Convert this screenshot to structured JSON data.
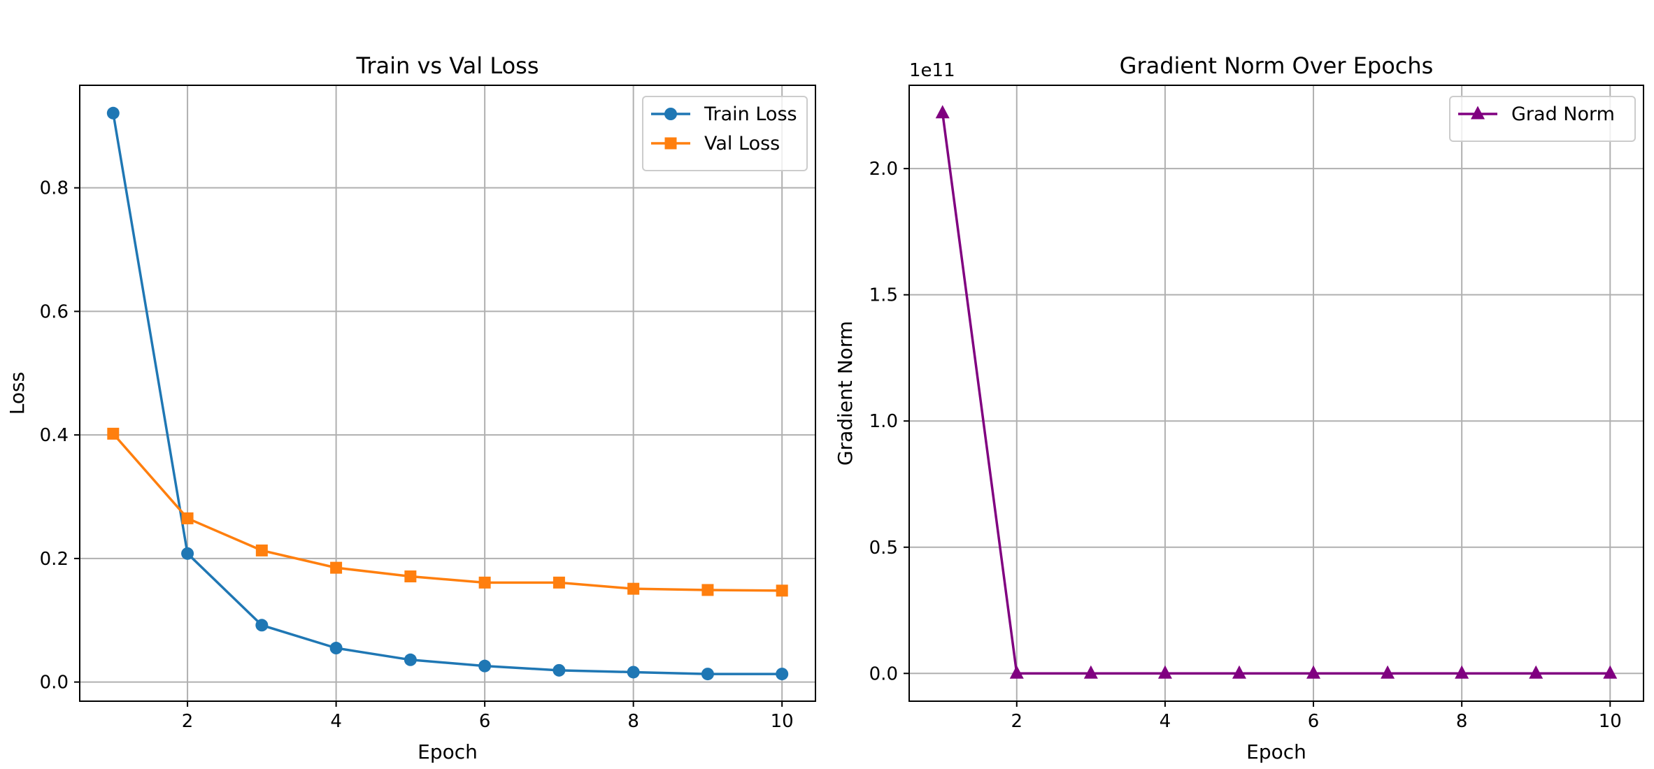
{
  "chart_data": [
    {
      "type": "line",
      "title": "Train vs Val Loss",
      "xlabel": "Epoch",
      "ylabel": "Loss",
      "xlim": [
        0.55,
        10.45
      ],
      "ylim": [
        -0.031,
        0.966
      ],
      "xticks": [
        2,
        4,
        6,
        8,
        10
      ],
      "xtick_labels": [
        "2",
        "4",
        "6",
        "8",
        "10"
      ],
      "yticks": [
        0.0,
        0.2,
        0.4,
        0.6,
        0.8
      ],
      "ytick_labels": [
        "0.0",
        "0.2",
        "0.4",
        "0.6",
        "0.8"
      ],
      "y_offset_text": "",
      "grid": true,
      "legend_position": "top-right",
      "x": [
        1,
        2,
        3,
        4,
        5,
        6,
        7,
        8,
        9,
        10
      ],
      "series": [
        {
          "name": "Train Loss",
          "color": "#1f77b4",
          "marker": "circle",
          "values": [
            0.921,
            0.208,
            0.092,
            0.055,
            0.036,
            0.026,
            0.019,
            0.016,
            0.013,
            0.013
          ]
        },
        {
          "name": "Val Loss",
          "color": "#ff7f0e",
          "marker": "square",
          "values": [
            0.402,
            0.265,
            0.213,
            0.185,
            0.171,
            0.161,
            0.161,
            0.151,
            0.149,
            0.148
          ]
        }
      ]
    },
    {
      "type": "line",
      "title": "Gradient Norm Over Epochs",
      "xlabel": "Epoch",
      "ylabel": "Gradient Norm",
      "xlim": [
        0.55,
        10.45
      ],
      "ylim": [
        -0.11,
        2.33
      ],
      "xticks": [
        2,
        4,
        6,
        8,
        10
      ],
      "xtick_labels": [
        "2",
        "4",
        "6",
        "8",
        "10"
      ],
      "yticks": [
        0.0,
        0.5,
        1.0,
        1.5,
        2.0
      ],
      "ytick_labels": [
        "0.0",
        "0.5",
        "1.0",
        "1.5",
        "2.0"
      ],
      "y_offset_text": "1e11",
      "grid": true,
      "legend_position": "top-right",
      "x": [
        1,
        2,
        3,
        4,
        5,
        6,
        7,
        8,
        9,
        10
      ],
      "series": [
        {
          "name": "Grad Norm",
          "color": "#800080",
          "marker": "triangle-up",
          "values": [
            2.22,
            0.0,
            0.0,
            0.0,
            0.0,
            0.0,
            0.0,
            0.0,
            0.0,
            0.0
          ]
        }
      ]
    }
  ]
}
